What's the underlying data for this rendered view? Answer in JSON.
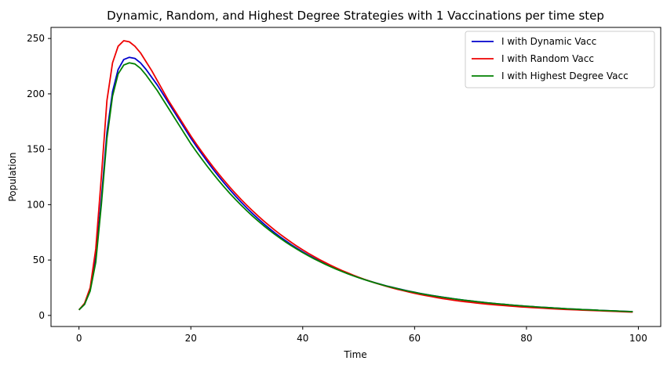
{
  "chart_data": {
    "type": "line",
    "title": "Dynamic, Random, and Highest Degree Strategies with 1 Vaccinations per time step",
    "xlabel": "Time",
    "ylabel": "Population",
    "xlim": [
      -5,
      104
    ],
    "ylim": [
      -10,
      260
    ],
    "xticks": [
      0,
      20,
      40,
      60,
      80,
      100
    ],
    "yticks": [
      0,
      50,
      100,
      150,
      200,
      250
    ],
    "grid": false,
    "legend_position": "top-right",
    "x": [
      0,
      1,
      2,
      3,
      4,
      5,
      6,
      7,
      8,
      9,
      10,
      11,
      12,
      13,
      14,
      15,
      16,
      17,
      18,
      19,
      20,
      21,
      22,
      23,
      24,
      25,
      26,
      27,
      28,
      29,
      30,
      31,
      32,
      33,
      34,
      35,
      36,
      37,
      38,
      39,
      40,
      41,
      42,
      43,
      44,
      45,
      46,
      47,
      48,
      49,
      50,
      51,
      52,
      53,
      54,
      55,
      56,
      57,
      58,
      59,
      60,
      61,
      62,
      63,
      64,
      65,
      66,
      67,
      68,
      69,
      70,
      71,
      72,
      73,
      74,
      75,
      76,
      77,
      78,
      79,
      80,
      81,
      82,
      83,
      84,
      85,
      86,
      87,
      88,
      89,
      90,
      91,
      92,
      93,
      94,
      95,
      96,
      97,
      98,
      99
    ],
    "series": [
      {
        "name": "I with Dynamic Vacc",
        "color": "#0000cc",
        "values": [
          5,
          10,
          23,
          52,
          105,
          165,
          202,
          222,
          231,
          233,
          232,
          228,
          222,
          215,
          208,
          200,
          192,
          184,
          176,
          168,
          160,
          152.6,
          145.5,
          138.5,
          131.8,
          125.4,
          119.2,
          113.3,
          107.6,
          102.2,
          97.0,
          92.1,
          87.4,
          82.9,
          78.7,
          74.6,
          70.8,
          67.2,
          63.7,
          60.5,
          57.4,
          54.5,
          51.7,
          49.1,
          46.6,
          44.3,
          42.0,
          39.9,
          37.9,
          36.0,
          34.2,
          32.5,
          30.9,
          29.4,
          28.0,
          26.6,
          25.4,
          24.2,
          23.0,
          21.9,
          20.9,
          19.9,
          19.0,
          18.1,
          17.3,
          16.5,
          15.8,
          15.0,
          14.4,
          13.7,
          13.1,
          12.5,
          12.0,
          11.4,
          10.9,
          10.4,
          10.0,
          9.5,
          9.1,
          8.7,
          8.3,
          8.0,
          7.6,
          7.3,
          7.0,
          6.7,
          6.4,
          6.1,
          5.8,
          5.6,
          5.3,
          5.1,
          4.9,
          4.6,
          4.4,
          4.2,
          4.0,
          3.8,
          3.6,
          3.4
        ]
      },
      {
        "name": "I with Random Vacc",
        "color": "#ee0000",
        "values": [
          5,
          11,
          25,
          60,
          125,
          194,
          228,
          243,
          248,
          247,
          243,
          237,
          229,
          221,
          212,
          203,
          194,
          186,
          178,
          170,
          162,
          154.6,
          147.5,
          140.6,
          134.0,
          127.6,
          121.5,
          115.6,
          110.0,
          104.6,
          99.5,
          94.6,
          89.9,
          85.4,
          81.1,
          77.0,
          73.1,
          69.4,
          65.8,
          62.4,
          59.2,
          56.1,
          53.2,
          50.4,
          47.8,
          45.3,
          42.9,
          40.6,
          38.5,
          36.4,
          34.5,
          32.6,
          30.9,
          29.2,
          27.7,
          26.2,
          24.8,
          23.5,
          22.3,
          21.1,
          20.0,
          18.9,
          17.9,
          17.0,
          16.1,
          15.2,
          14.5,
          13.7,
          13.0,
          12.4,
          11.8,
          11.2,
          10.7,
          10.2,
          9.7,
          9.3,
          8.9,
          8.5,
          8.1,
          7.7,
          7.4,
          7.1,
          6.8,
          6.5,
          6.2,
          5.9,
          5.7,
          5.4,
          5.2,
          5.0,
          4.8,
          4.6,
          4.4,
          4.2,
          4.0,
          3.8,
          3.6,
          3.4,
          3.2,
          3.0
        ]
      },
      {
        "name": "I with Highest Degree Vacc",
        "color": "#008000",
        "values": [
          5,
          10,
          22,
          48,
          100,
          160,
          198,
          218,
          226,
          228,
          227,
          223,
          217,
          210,
          203,
          195,
          187,
          179,
          171,
          163,
          155,
          147.8,
          140.9,
          134.2,
          127.8,
          121.6,
          115.7,
          110.0,
          104.6,
          99.5,
          94.5,
          89.8,
          85.4,
          81.1,
          77.1,
          73.2,
          69.6,
          66.1,
          62.8,
          59.7,
          56.7,
          53.9,
          51.2,
          48.7,
          46.2,
          43.9,
          41.7,
          39.7,
          37.7,
          35.8,
          34.1,
          32.4,
          30.8,
          29.3,
          27.9,
          26.5,
          25.3,
          24.1,
          22.9,
          21.8,
          20.8,
          19.8,
          18.9,
          18.0,
          17.2,
          16.4,
          15.7,
          15.0,
          14.3,
          13.7,
          13.1,
          12.5,
          11.9,
          11.4,
          10.9,
          10.4,
          10.0,
          9.5,
          9.1,
          8.7,
          8.3,
          8.0,
          7.6,
          7.3,
          7.0,
          6.7,
          6.4,
          6.1,
          5.8,
          5.6,
          5.3,
          5.1,
          4.9,
          4.6,
          4.4,
          4.2,
          4.0,
          3.8,
          3.6,
          3.4
        ]
      }
    ]
  }
}
